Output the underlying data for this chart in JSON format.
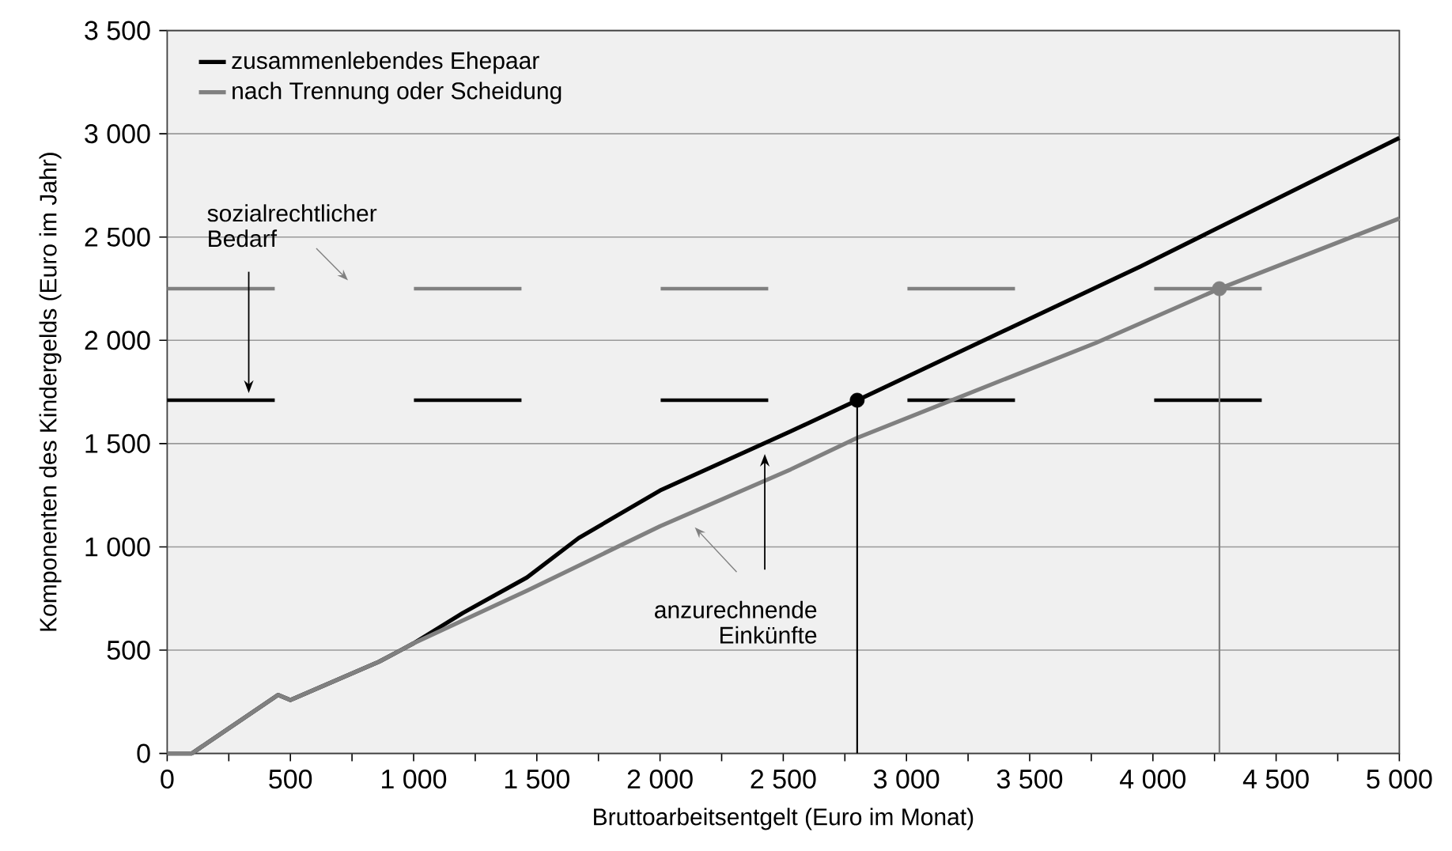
{
  "chart_data": {
    "type": "line",
    "xlabel": "Bruttoarbeitsentgelt (Euro im Monat)",
    "ylabel": "Komponenten des Kindergelds (Euro im Jahr)",
    "xlim": [
      0,
      5000
    ],
    "ylim": [
      0,
      3500
    ],
    "xticks": [
      0,
      {
        "value": 250,
        "label": null
      },
      500,
      {
        "value": 750,
        "label": null
      },
      {
        "value": 1000,
        "label": "1 000"
      },
      {
        "value": 1250,
        "label": null
      },
      {
        "value": 1500,
        "label": "1 500"
      },
      {
        "value": 1750,
        "label": null
      },
      {
        "value": 2000,
        "label": "2 000"
      },
      {
        "value": 2250,
        "label": null
      },
      {
        "value": 2500,
        "label": "2 500"
      },
      {
        "value": 2750,
        "label": null
      },
      {
        "value": 3000,
        "label": "3 000"
      },
      {
        "value": 3250,
        "label": null
      },
      {
        "value": 3500,
        "label": "3 500"
      },
      {
        "value": 3750,
        "label": null
      },
      {
        "value": 4000,
        "label": "4 000"
      },
      {
        "value": 4250,
        "label": null
      },
      {
        "value": 4500,
        "label": "4 500"
      },
      {
        "value": 4750,
        "label": null
      },
      {
        "value": 5000,
        "label": "5 000"
      }
    ],
    "yticks": [
      0,
      500,
      {
        "value": 1000,
        "label": "1 000"
      },
      {
        "value": 1500,
        "label": "1 500"
      },
      {
        "value": 2000,
        "label": "2 000"
      },
      {
        "value": 2500,
        "label": "2 500"
      },
      {
        "value": 3000,
        "label": "3 000"
      },
      {
        "value": 3500,
        "label": "3 500"
      }
    ],
    "grid": "y",
    "legend": "top left",
    "series": [
      {
        "name": "zusammenlebendes Ehepaar",
        "color": "#000000",
        "x": [
          0,
          100,
          450,
          500,
          860,
          1000,
          1200,
          1460,
          1670,
          2000,
          2530,
          2800,
          3950,
          5000
        ],
        "values": [
          0,
          0,
          283,
          258,
          444,
          533,
          680,
          852,
          1043,
          1273,
          1559,
          1710,
          2358,
          2980
        ]
      },
      {
        "name": "nach Trennung oder Scheidung",
        "color": "#808080",
        "x": [
          0,
          100,
          450,
          500,
          860,
          1000,
          1460,
          2000,
          2530,
          2800,
          3770,
          4270,
          5000
        ],
        "values": [
          0,
          0,
          283,
          258,
          444,
          533,
          788,
          1100,
          1375,
          1528,
          1988,
          2250,
          2590
        ]
      },
      {
        "type": "line",
        "color": "#000000",
        "x": [
          2800,
          2800
        ],
        "values": [
          0,
          1710
        ]
      },
      {
        "type": "line",
        "color": "#808080",
        "x": [
          4270,
          4270
        ],
        "values": [
          0,
          2250
        ]
      },
      {
        "type": "scatter",
        "color": "#000000",
        "marker": "circle",
        "x": [
          2800
        ],
        "values": [
          1710
        ]
      },
      {
        "type": "scatter",
        "color": "#808080",
        "marker": "circle",
        "x": [
          4270
        ],
        "values": [
          2250
        ]
      }
    ],
    "ref_lines": [
      {
        "axis": "y",
        "value": 1710,
        "color": "#000000",
        "line_style": "dashed"
      },
      {
        "axis": "y",
        "value": 2250,
        "color": "#808080",
        "line_style": "dashed"
      }
    ],
    "annotations": [
      "sozialrechtlicher Bedarf",
      "anzurechnende Einkünfte"
    ]
  }
}
